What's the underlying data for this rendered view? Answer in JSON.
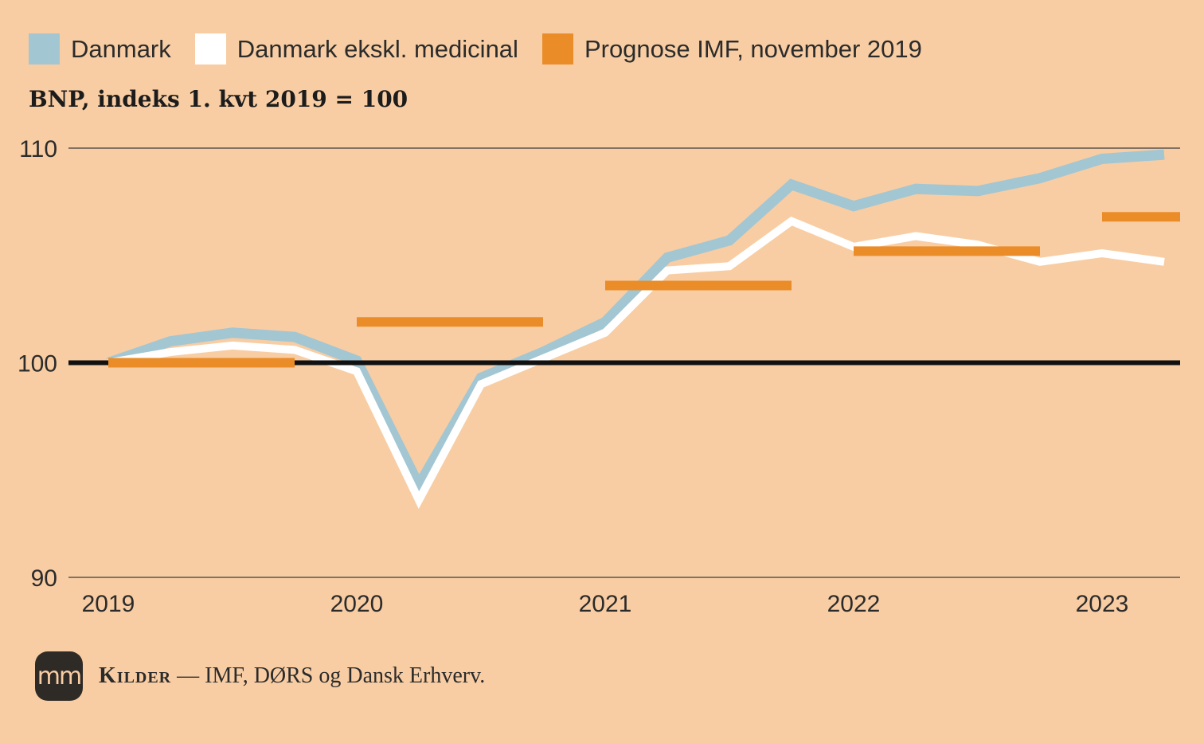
{
  "legend": {
    "items": [
      {
        "label": "Danmark",
        "color": "#a3c6d3"
      },
      {
        "label": "Danmark ekskl. medicinal",
        "color": "#ffffff"
      },
      {
        "label": "Prognose IMF, november 2019",
        "color": "#ea8d29"
      }
    ]
  },
  "subtitle": "BNP, indeks 1. kvt 2019 = 100",
  "source": {
    "logo_text": "mm",
    "label": "Kilder",
    "text": " — IMF, DØRS og Dansk Erhverv."
  },
  "chart_data": {
    "type": "line",
    "title": "",
    "ylabel": "BNP, indeks 1. kvt 2019 = 100",
    "ylim": [
      90,
      110
    ],
    "yticks": [
      90,
      100,
      110
    ],
    "xticks": [
      "2019",
      "2020",
      "2021",
      "2022",
      "2023"
    ],
    "x": [
      "2019K1",
      "2019K2",
      "2019K3",
      "2019K4",
      "2020K1",
      "2020K2",
      "2020K3",
      "2020K4",
      "2021K1",
      "2021K2",
      "2021K3",
      "2021K4",
      "2022K1",
      "2022K2",
      "2022K3",
      "2022K4",
      "2023K1",
      "2023K2"
    ],
    "series": [
      {
        "name": "Danmark",
        "color": "#a3c6d3",
        "values": [
          100.0,
          101.0,
          101.4,
          101.2,
          100.1,
          94.3,
          99.3,
          100.5,
          101.9,
          104.9,
          105.7,
          108.3,
          107.3,
          108.1,
          108.0,
          108.6,
          109.5,
          109.7
        ]
      },
      {
        "name": "Danmark ekskl. medicinal",
        "color": "#ffffff",
        "values": [
          100.0,
          100.5,
          100.8,
          100.6,
          99.6,
          93.6,
          99.0,
          100.2,
          101.4,
          104.3,
          104.5,
          106.6,
          105.4,
          105.9,
          105.5,
          104.7,
          105.1,
          104.7
        ]
      },
      {
        "name": "Prognose IMF, november 2019",
        "color": "#ea8d29",
        "kind": "annual-steps",
        "segments": [
          {
            "year": "2019",
            "value": 100.0
          },
          {
            "year": "2020",
            "value": 101.9
          },
          {
            "year": "2021",
            "value": 103.6
          },
          {
            "year": "2022",
            "value": 105.2
          },
          {
            "year": "2023",
            "value": 106.8
          }
        ]
      }
    ],
    "baseline": 100,
    "grid": true
  }
}
